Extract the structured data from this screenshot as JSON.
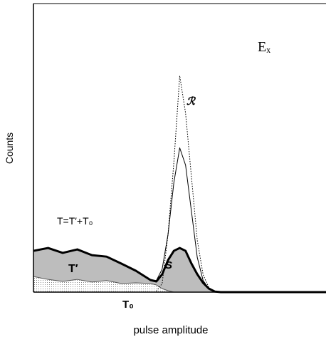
{
  "chart_data": {
    "type": "line",
    "x_label": "pulse amplitude",
    "y_label": "Counts",
    "x": [
      0,
      5,
      10,
      15,
      20,
      25,
      30,
      35,
      40,
      42,
      44,
      46,
      48,
      50,
      52,
      54,
      56,
      58,
      60,
      62,
      64,
      66,
      70,
      80,
      90,
      100
    ],
    "xlim": [
      0,
      100
    ],
    "ylim": [
      0,
      100
    ],
    "series": [
      {
        "name": "S",
        "color": "#000000",
        "width": 3,
        "fill": "#bdbdbd",
        "values": [
          14.3,
          15.3,
          13.6,
          14.8,
          12.8,
          12.3,
          9.9,
          7.4,
          4.2,
          3.7,
          6.2,
          11.1,
          14.3,
          15.3,
          14.3,
          9.9,
          6.2,
          3.2,
          1.2,
          0.2,
          0,
          0,
          0,
          0,
          0,
          0
        ]
      },
      {
        "name": "T₀",
        "color": "#555555",
        "width": 1,
        "fill": "#e6e6e6",
        "values": [
          5.4,
          4.4,
          3.7,
          4.4,
          3.5,
          4.0,
          3.0,
          3.2,
          3.0,
          2.5,
          1.2,
          0.5,
          0,
          null,
          null,
          null,
          null,
          null,
          null,
          null,
          null,
          null,
          null,
          null,
          null,
          null
        ]
      },
      {
        "color": "#000000",
        "width": 1,
        "values": [
          null,
          null,
          null,
          null,
          null,
          null,
          null,
          null,
          4.2,
          4,
          8,
          20,
          38,
          50,
          44,
          28,
          12,
          4,
          1.2,
          0.2,
          0,
          0,
          0,
          0,
          0,
          0
        ]
      },
      {
        "name": "ℛ",
        "color": "#000000",
        "width": 1,
        "dash": "dotted",
        "values": [
          null,
          null,
          null,
          null,
          null,
          null,
          null,
          null,
          null,
          0.3,
          3,
          20,
          45,
          75,
          62,
          40,
          18,
          6,
          1.5,
          0.3,
          0,
          0,
          0,
          0,
          0,
          0
        ]
      }
    ],
    "annotations": [
      "Eₓ",
      "T=T′+T₀",
      "T′"
    ]
  }
}
